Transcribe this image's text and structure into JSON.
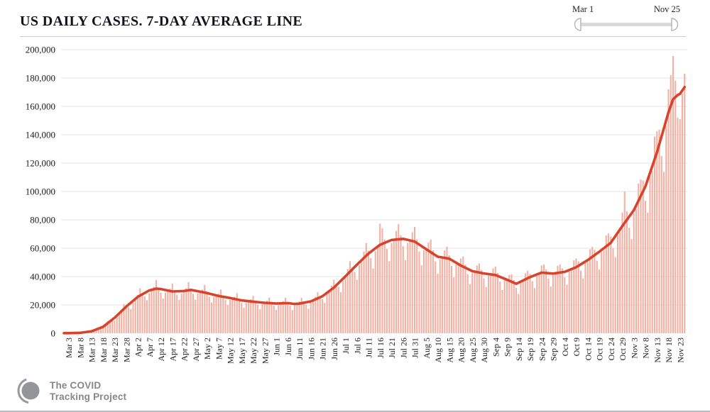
{
  "header": {
    "title": "US DAILY CASES. 7-DAY AVERAGE LINE"
  },
  "range_slider": {
    "start_label": "Mar 1",
    "end_label": "Nov 25"
  },
  "footer": {
    "brand_line1": "The COVID",
    "brand_line2": "Tracking Project"
  },
  "chart_data": {
    "type": "bar",
    "title": "US DAILY CASES. 7-DAY AVERAGE LINE",
    "xlabel": "",
    "ylabel": "",
    "x_range_labels": [
      "Mar 1",
      "Nov 25"
    ],
    "days": 270,
    "start_weekday": "Sunday",
    "ylim": [
      0,
      200000
    ],
    "grid": "horizontal",
    "legend": "none",
    "y_ticks": [
      0,
      20000,
      40000,
      60000,
      80000,
      100000,
      120000,
      140000,
      160000,
      180000,
      200000
    ],
    "y_tick_labels": [
      "0",
      "20,000",
      "40,000",
      "60,000",
      "80,000",
      "100,000",
      "120,000",
      "140,000",
      "160,000",
      "180,000",
      "200,000"
    ],
    "x_ticks": {
      "first_day_index": 2,
      "step": 5,
      "labels": [
        "Mar 3",
        "Mar 8",
        "Mar 13",
        "Mar 18",
        "Mar 23",
        "Mar 28",
        "Apr 2",
        "Apr 7",
        "Apr 12",
        "Apr 17",
        "Apr 22",
        "Apr 27",
        "May 2",
        "May 7",
        "May 12",
        "May 17",
        "May 22",
        "May 27",
        "Jun 1",
        "Jun 6",
        "Jun 11",
        "Jun 16",
        "Jun 21",
        "Jun 26",
        "Jul 1",
        "Jul 6",
        "Jul 11",
        "Jul 16",
        "Jul 21",
        "Jul 26",
        "Jul 31",
        "Aug 5",
        "Aug 10",
        "Aug 15",
        "Aug 20",
        "Aug 25",
        "Aug 30",
        "Sep 4",
        "Sep 9",
        "Sep 14",
        "Sep 19",
        "Sep 24",
        "Sep 29",
        "Oct 4",
        "Oct 9",
        "Oct 14",
        "Oct 19",
        "Oct 24",
        "Oct 29",
        "Nov 3",
        "Nov 8",
        "Nov 13",
        "Nov 18",
        "Nov 23"
      ]
    },
    "series": [
      {
        "name": "daily-cases-bars",
        "type": "bar",
        "color": "#f3b1a4",
        "derive_from_line": {
          "weekday_factors": [
            0.88,
            0.82,
            0.93,
            1.02,
            1.09,
            1.14,
            1.08
          ],
          "jitter": 0.05
        },
        "overrides": {
          "137": 77300,
          "138": 74000,
          "243": 100000,
          "262": 172000,
          "263": 182000,
          "264": 195500,
          "265": 178000,
          "266": 152000,
          "267": 151000,
          "268": 169000,
          "269": 183000
        }
      },
      {
        "name": "seven-day-average",
        "type": "line",
        "color": "#d8432c",
        "width": 3.6,
        "points": [
          [
            0,
            70
          ],
          [
            2,
            90
          ],
          [
            7,
            320
          ],
          [
            12,
            1400
          ],
          [
            17,
            4600
          ],
          [
            22,
            11000
          ],
          [
            27,
            18800
          ],
          [
            32,
            25700
          ],
          [
            37,
            30200
          ],
          [
            40,
            31500
          ],
          [
            42,
            31200
          ],
          [
            47,
            29500
          ],
          [
            52,
            29800
          ],
          [
            55,
            30600
          ],
          [
            57,
            30000
          ],
          [
            62,
            28400
          ],
          [
            67,
            26300
          ],
          [
            72,
            24900
          ],
          [
            77,
            23200
          ],
          [
            82,
            22300
          ],
          [
            87,
            21500
          ],
          [
            92,
            21000
          ],
          [
            97,
            21300
          ],
          [
            100,
            20700
          ],
          [
            102,
            20900
          ],
          [
            107,
            22500
          ],
          [
            112,
            26100
          ],
          [
            117,
            32200
          ],
          [
            122,
            40200
          ],
          [
            127,
            48400
          ],
          [
            132,
            56200
          ],
          [
            137,
            62400
          ],
          [
            142,
            65800
          ],
          [
            147,
            66600
          ],
          [
            152,
            64700
          ],
          [
            157,
            59300
          ],
          [
            162,
            54000
          ],
          [
            167,
            52600
          ],
          [
            172,
            47800
          ],
          [
            177,
            43800
          ],
          [
            182,
            42200
          ],
          [
            187,
            41100
          ],
          [
            192,
            37800
          ],
          [
            196,
            34900
          ],
          [
            202,
            39600
          ],
          [
            207,
            42800
          ],
          [
            212,
            42100
          ],
          [
            217,
            43300
          ],
          [
            222,
            46600
          ],
          [
            227,
            51600
          ],
          [
            232,
            57500
          ],
          [
            237,
            63800
          ],
          [
            242,
            75600
          ],
          [
            247,
            86800
          ],
          [
            252,
            103500
          ],
          [
            257,
            127500
          ],
          [
            262,
            155800
          ],
          [
            264,
            165000
          ],
          [
            266,
            168000
          ],
          [
            267,
            168800
          ],
          [
            269,
            173600
          ]
        ]
      }
    ],
    "colors": {
      "bar": "#f3b1a4",
      "line": "#d8432c",
      "grid": "#e5e5e5",
      "text": "#1a1a1a"
    }
  }
}
